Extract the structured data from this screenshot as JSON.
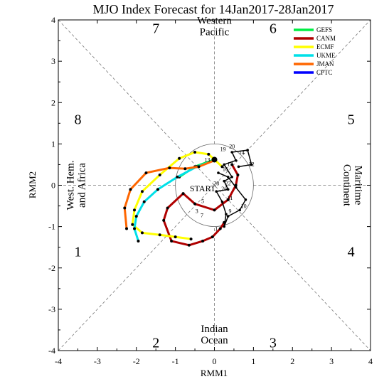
{
  "chart_data": {
    "type": "line",
    "title": "MJO Index Forecast for 14Jan2017-28Jan2017",
    "xlabel": "RMM1",
    "ylabel": "RMM2",
    "xlim": [
      -4,
      4
    ],
    "ylim": [
      -4,
      4
    ],
    "xticks": [
      "-4",
      "-3",
      "-2",
      "-1",
      "0",
      "1",
      "2",
      "3",
      "4"
    ],
    "yticks": [
      "-4",
      "-3",
      "-2",
      "-1",
      "0",
      "1",
      "2",
      "3",
      "4"
    ],
    "unit_circle_radius": 1,
    "phases": [
      {
        "label": "1",
        "x": -3.5,
        "y": -1.6
      },
      {
        "label": "2",
        "x": -1.5,
        "y": -3.8
      },
      {
        "label": "3",
        "x": 1.5,
        "y": -3.8
      },
      {
        "label": "4",
        "x": 3.5,
        "y": -1.6
      },
      {
        "label": "5",
        "x": 3.5,
        "y": 1.6
      },
      {
        "label": "6",
        "x": 1.5,
        "y": 3.8
      },
      {
        "label": "7",
        "x": -1.5,
        "y": 3.8
      },
      {
        "label": "8",
        "x": -3.5,
        "y": 1.6
      }
    ],
    "regions": [
      {
        "lines": [
          "Western",
          "Pacific"
        ],
        "x": 0,
        "y": 3.85,
        "rotate": 0
      },
      {
        "lines": [
          "Indian",
          "Ocean"
        ],
        "x": 0,
        "y": -3.6,
        "rotate": 0
      },
      {
        "lines": [
          "West. Hem.",
          "and Africa"
        ],
        "x": -3.55,
        "y": 0,
        "rotate": -90
      },
      {
        "lines": [
          "Maritime",
          "Continent"
        ],
        "x": 3.55,
        "y": 0,
        "rotate": 90
      }
    ],
    "start_label": {
      "text": "START",
      "x": -0.3,
      "y": -0.15
    },
    "series": [
      {
        "name": "GEFS",
        "color": "#00ee44",
        "x": [
          0,
          -0.5,
          -0.9
        ],
        "y": [
          0.62,
          0.45,
          0.2
        ]
      },
      {
        "name": "CANM",
        "color": "#b00000",
        "x": [
          0.45,
          0.6,
          0.55,
          0.35,
          0.0,
          -0.5,
          -0.8,
          -1.2,
          -1.3,
          -1.1,
          -0.65,
          -0.3,
          -0.05,
          0.15,
          0.25
        ],
        "y": [
          0.5,
          0.25,
          0.0,
          -0.35,
          -0.6,
          -0.45,
          -0.2,
          -0.55,
          -0.85,
          -1.35,
          -1.45,
          -1.35,
          -1.25,
          -1.05,
          -0.9
        ]
      },
      {
        "name": "ECMF",
        "color": "#ffff00",
        "x": [
          0.2,
          -0.15,
          -0.5,
          -0.9,
          -1.4,
          -1.85,
          -2.05,
          -2.1,
          -1.85,
          -1.4,
          -1.0,
          -0.6
        ],
        "y": [
          0.45,
          0.75,
          0.8,
          0.65,
          0.25,
          -0.15,
          -0.6,
          -0.95,
          -1.15,
          -1.2,
          -1.25,
          -1.3
        ]
      },
      {
        "name": "UKME",
        "color": "#00e0e8",
        "x": [
          0.0,
          -0.45,
          -0.95,
          -1.45,
          -1.8,
          -2.0,
          -2.05,
          -1.95
        ],
        "y": [
          0.6,
          0.45,
          0.2,
          -0.1,
          -0.4,
          -0.75,
          -1.05,
          -1.35
        ]
      },
      {
        "name": "JMAN",
        "color": "#ff6600",
        "x": [
          0.0,
          -0.4,
          -0.75,
          -1.15,
          -1.75,
          -2.15,
          -2.3,
          -2.25
        ],
        "y": [
          0.6,
          0.45,
          0.4,
          0.42,
          0.3,
          -0.1,
          -0.55,
          -1.05
        ]
      },
      {
        "name": "CPTC",
        "color": "#0000ff",
        "x": [],
        "y": []
      }
    ],
    "observed": {
      "color": "#000000",
      "x": [
        0.62,
        0.95,
        0.85,
        0.45,
        0.55,
        0.25,
        0.45,
        0.25,
        0.35,
        0.05,
        0.2,
        0.3,
        0.25,
        0.35,
        0.65,
        0.8,
        0.55,
        0.35,
        0.1
      ],
      "y": [
        0.45,
        0.5,
        0.85,
        0.8,
        0.6,
        0.5,
        0.2,
        0.1,
        -0.1,
        -0.15,
        -0.4,
        -0.7,
        -1.0,
        -0.75,
        -0.6,
        -0.35,
        -0.05,
        0.2,
        0.3
      ],
      "labels": [
        {
          "text": "20",
          "x": 0.45,
          "y": 0.95
        },
        {
          "text": "19",
          "x": 0.22,
          "y": 0.88
        },
        {
          "text": "14",
          "x": 0.7,
          "y": 0.8
        },
        {
          "text": "17",
          "x": 0.4,
          "y": 0.52
        },
        {
          "text": "12",
          "x": 0.95,
          "y": 0.52
        },
        {
          "text": "13",
          "x": -0.18,
          "y": 0.62
        },
        {
          "text": "16",
          "x": 0.28,
          "y": 0.4
        },
        {
          "text": "22",
          "x": 0.35,
          "y": 0.05
        },
        {
          "text": "28",
          "x": 0.05,
          "y": 0.05
        },
        {
          "text": "26",
          "x": 0.25,
          "y": -0.08
        },
        {
          "text": "11",
          "x": 0.4,
          "y": -0.3
        },
        {
          "text": "10",
          "x": 0.75,
          "y": -0.5
        },
        {
          "text": "9",
          "x": 0.4,
          "y": -0.62
        },
        {
          "text": "5",
          "x": -0.3,
          "y": -0.38
        },
        {
          "text": "3",
          "x": -0.45,
          "y": -0.62
        },
        {
          "text": "7",
          "x": -0.32,
          "y": -0.72
        },
        {
          "text": "1",
          "x": 0.05,
          "y": -1.05
        }
      ]
    },
    "legend": {
      "placement": "top-right",
      "entries": [
        {
          "label": "GEFS",
          "color": "#00ee44"
        },
        {
          "label": "CANM",
          "color": "#b00000"
        },
        {
          "label": "ECMF",
          "color": "#ffff00"
        },
        {
          "label": "UKME",
          "color": "#00e0e8"
        },
        {
          "label": "JMAN",
          "color": "#ff6600"
        },
        {
          "label": "CPTC",
          "color": "#0000ff"
        }
      ]
    }
  }
}
